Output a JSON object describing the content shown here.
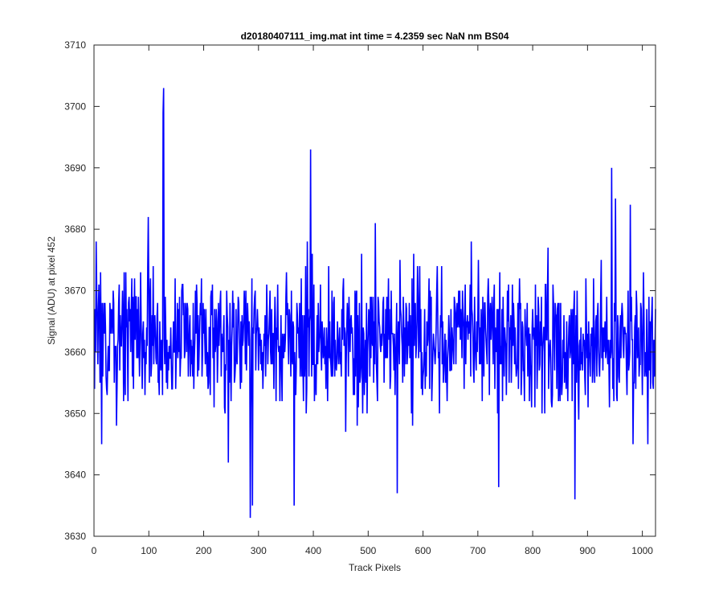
{
  "chart_data": {
    "type": "line",
    "title": "d20180407111_img.mat int time = 4.2359 sec  NaN nm BS04",
    "xlabel": "Track Pixels",
    "ylabel": "Signal (ADU) at pixel 452",
    "xlim": [
      0,
      1024
    ],
    "ylim": [
      3630,
      3710
    ],
    "xticks": [
      0,
      100,
      200,
      300,
      400,
      500,
      600,
      700,
      800,
      900,
      1000
    ],
    "yticks": [
      3630,
      3640,
      3650,
      3660,
      3670,
      3680,
      3690,
      3700,
      3710
    ],
    "grid": false,
    "series": [
      {
        "color": "#0000ff",
        "x_start": 1,
        "x_step": 1,
        "count": 1024,
        "baseline": 3662,
        "noise_range": [
          3644,
          3678
        ],
        "peaks": [
          {
            "x": 4,
            "y": 3678
          },
          {
            "x": 14,
            "y": 3645
          },
          {
            "x": 99,
            "y": 3682
          },
          {
            "x": 126,
            "y": 3699
          },
          {
            "x": 127,
            "y": 3703
          },
          {
            "x": 245,
            "y": 3642
          },
          {
            "x": 285,
            "y": 3633
          },
          {
            "x": 289,
            "y": 3635
          },
          {
            "x": 365,
            "y": 3635
          },
          {
            "x": 395,
            "y": 3693
          },
          {
            "x": 389,
            "y": 3678
          },
          {
            "x": 553,
            "y": 3637
          },
          {
            "x": 513,
            "y": 3681
          },
          {
            "x": 738,
            "y": 3638
          },
          {
            "x": 877,
            "y": 3636
          },
          {
            "x": 944,
            "y": 3690
          },
          {
            "x": 951,
            "y": 3685
          },
          {
            "x": 978,
            "y": 3684
          },
          {
            "x": 983,
            "y": 3645
          },
          {
            "x": 1010,
            "y": 3645
          }
        ]
      }
    ]
  }
}
